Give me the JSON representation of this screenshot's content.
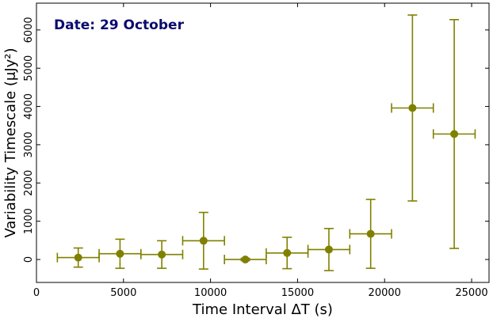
{
  "chart_data": {
    "type": "scatter",
    "annotation": "Date: 29 October",
    "xlabel": "Time Interval ΔT (s)",
    "ylabel": "Variability Timescale (μJy²)",
    "xlim": [
      0,
      26000
    ],
    "ylim": [
      -600,
      6700
    ],
    "x_ticks": [
      0,
      5000,
      10000,
      15000,
      20000,
      25000
    ],
    "y_ticks": [
      0,
      1000,
      2000,
      3000,
      4000,
      5000,
      6000
    ],
    "grid": false,
    "series": [
      {
        "x": [
          2400,
          4800,
          7200,
          9600,
          12000,
          14400,
          16800,
          19200,
          21600,
          24000
        ],
        "y": [
          50,
          150,
          130,
          490,
          0,
          170,
          260,
          670,
          3960,
          3280
        ],
        "xerr": [
          1200,
          1200,
          1200,
          1200,
          1200,
          1200,
          1200,
          1200,
          1200,
          1200
        ],
        "yerr": [
          250,
          380,
          360,
          740,
          30,
          410,
          550,
          900,
          2430,
          2990
        ]
      }
    ],
    "colors": {
      "marker": "#808000",
      "annotation": "#0a0a6e",
      "frame": "#000000"
    }
  }
}
